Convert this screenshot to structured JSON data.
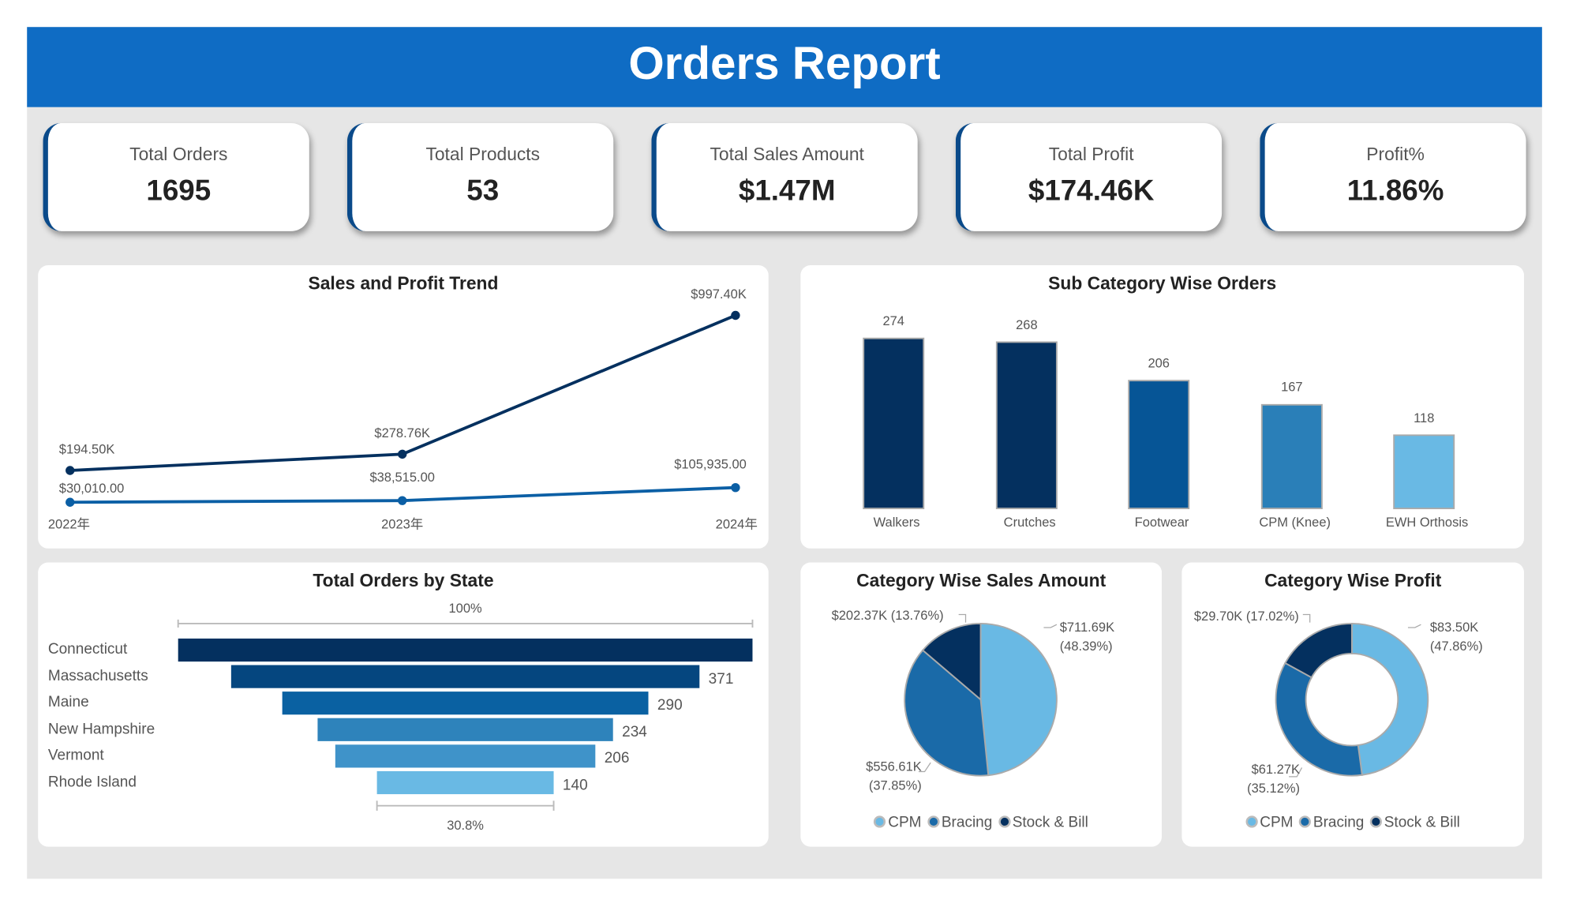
{
  "header": {
    "title": "Orders Report"
  },
  "kpis": [
    {
      "label": "Total Orders",
      "value": "1695"
    },
    {
      "label": "Total Products",
      "value": "53"
    },
    {
      "label": "Total Sales Amount",
      "value": "$1.47M"
    },
    {
      "label": "Total Profit",
      "value": "$174.46K"
    },
    {
      "label": "Profit%",
      "value": "11.86%"
    }
  ],
  "colors": {
    "header": "#0f6cc4",
    "kpi_accent": "#0a4a8a",
    "sales_line": "#04305f",
    "profit_line": "#0b5fa5",
    "cpm": "#69b9e4",
    "bracing": "#1a6aa8",
    "stock_bill": "#04305f"
  },
  "chart_data": [
    {
      "type": "line",
      "title": "Sales and Profit Trend",
      "categories": [
        "2022年",
        "2023年",
        "2024年"
      ],
      "series": [
        {
          "values": [
            194500,
            278760,
            997400
          ],
          "labels": [
            "$194.50K",
            "$278.76K",
            "$997.40K"
          ],
          "color": "#04305f"
        },
        {
          "values": [
            30010,
            38515,
            105935
          ],
          "labels": [
            "$30,010.00",
            "$38,515.00",
            "$105,935.00"
          ],
          "color": "#0b5fa5"
        }
      ]
    },
    {
      "type": "bar",
      "title": "Sub Category Wise Orders",
      "categories": [
        "Walkers",
        "Crutches",
        "Footwear",
        "CPM (Knee)",
        "EWH Orthosis"
      ],
      "values": [
        274,
        268,
        206,
        167,
        118
      ],
      "colors": [
        "#04305f",
        "#04305f",
        "#065596",
        "#2a7fb8",
        "#69b9e4"
      ]
    },
    {
      "type": "bar",
      "orientation": "funnel",
      "title": "Total Orders by State",
      "categories": [
        "Connecticut",
        "Massachusetts",
        "Maine",
        "New Hampshire",
        "Vermont",
        "Rhode Island"
      ],
      "values": [
        455,
        371,
        290,
        234,
        206,
        140
      ],
      "labels": [
        "",
        "371",
        "290",
        "234",
        "206",
        "140"
      ],
      "colors": [
        "#04305f",
        "#05467f",
        "#0a61a2",
        "#2e83bb",
        "#3f93c9",
        "#69b9e4"
      ],
      "top_label": "100%",
      "bottom_label": "30.8%"
    },
    {
      "type": "pie",
      "title": "Category Wise Sales Amount",
      "categories": [
        "CPM",
        "Bracing",
        "Stock & Bill"
      ],
      "values": [
        711.69,
        556.61,
        202.37
      ],
      "percent": [
        48.39,
        37.85,
        13.76
      ],
      "labels": [
        "$711.69K",
        "$556.61K",
        "$202.37K (13.76%)"
      ],
      "pct_labels": [
        "(48.39%)",
        "(37.85%)",
        ""
      ]
    },
    {
      "type": "pie",
      "donut": true,
      "title": "Category Wise Profit",
      "categories": [
        "CPM",
        "Bracing",
        "Stock & Bill"
      ],
      "values": [
        83.5,
        61.27,
        29.7
      ],
      "percent": [
        47.86,
        35.12,
        17.02
      ],
      "labels": [
        "$83.50K",
        "$61.27K",
        "$29.70K (17.02%)"
      ],
      "pct_labels": [
        "(47.86%)",
        "(35.12%)",
        ""
      ]
    }
  ]
}
